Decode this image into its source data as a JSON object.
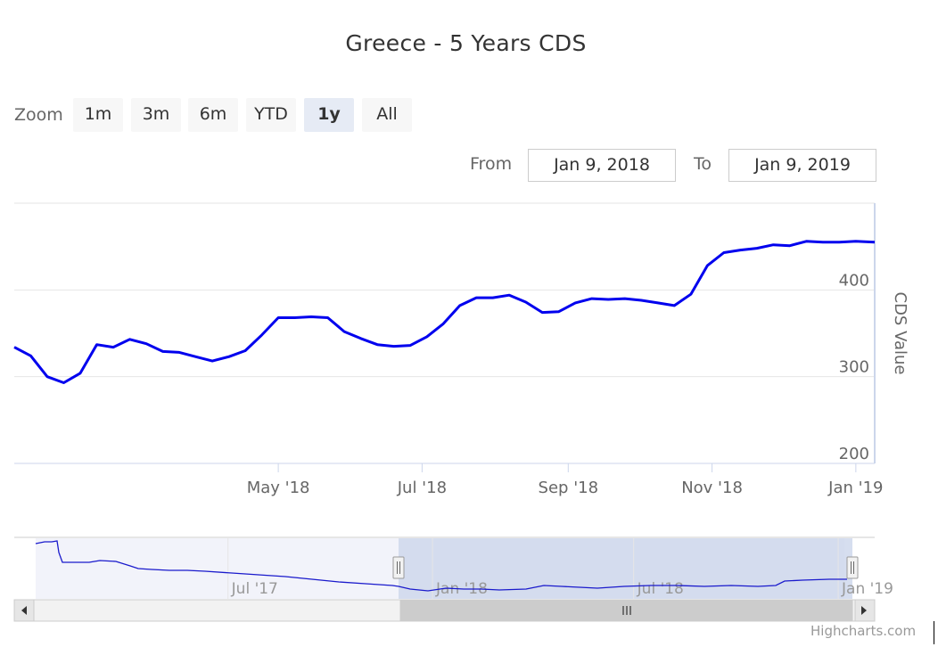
{
  "title": "Greece - 5 Years CDS",
  "range_selector": {
    "zoom_label": "Zoom",
    "buttons": [
      {
        "label": "1m",
        "active": false
      },
      {
        "label": "3m",
        "active": false
      },
      {
        "label": "6m",
        "active": false
      },
      {
        "label": "YTD",
        "active": false
      },
      {
        "label": "1y",
        "active": true
      },
      {
        "label": "All",
        "active": false
      }
    ],
    "from_label": "From",
    "from_value": "Jan 9, 2018",
    "to_label": "To",
    "to_value": "Jan 9, 2019"
  },
  "colors": {
    "series": "#0000ee",
    "navigator_mask": "#ccd6eb",
    "gridline": "#e6e6e6"
  },
  "chart_data": {
    "type": "line",
    "title": "Greece - 5 Years CDS",
    "ylabel": "CDS Value",
    "ylim": [
      200,
      500
    ],
    "y_ticks": [
      200,
      300,
      400
    ],
    "xlim": [
      "2018-01-09",
      "2019-01-09"
    ],
    "x_ticks": [
      {
        "date": "2018-05-01",
        "label": "May '18"
      },
      {
        "date": "2018-07-01",
        "label": "Jul '18"
      },
      {
        "date": "2018-09-01",
        "label": "Sep '18"
      },
      {
        "date": "2018-11-01",
        "label": "Nov '18"
      },
      {
        "date": "2019-01-01",
        "label": "Jan '19"
      }
    ],
    "series": [
      {
        "x": [
          "2018-01-09",
          "2018-01-16",
          "2018-01-23",
          "2018-01-30",
          "2018-02-06",
          "2018-02-13",
          "2018-02-20",
          "2018-02-27",
          "2018-03-06",
          "2018-03-13",
          "2018-03-20",
          "2018-03-27",
          "2018-04-03",
          "2018-04-10",
          "2018-04-17",
          "2018-04-24",
          "2018-05-01",
          "2018-05-08",
          "2018-05-15",
          "2018-05-22",
          "2018-05-29",
          "2018-06-05",
          "2018-06-12",
          "2018-06-19",
          "2018-06-26",
          "2018-07-03",
          "2018-07-10",
          "2018-07-17",
          "2018-07-24",
          "2018-07-31",
          "2018-08-07",
          "2018-08-14",
          "2018-08-21",
          "2018-08-28",
          "2018-09-04",
          "2018-09-11",
          "2018-09-18",
          "2018-09-25",
          "2018-10-02",
          "2018-10-09",
          "2018-10-16",
          "2018-10-23",
          "2018-10-30",
          "2018-11-06",
          "2018-11-13",
          "2018-11-20",
          "2018-11-27",
          "2018-12-04",
          "2018-12-11",
          "2018-12-18",
          "2018-12-25",
          "2019-01-01",
          "2019-01-09"
        ],
        "y": [
          334,
          324,
          300,
          293,
          304,
          337,
          334,
          343,
          338,
          329,
          328,
          323,
          318,
          323,
          330,
          348,
          368,
          368,
          369,
          368,
          352,
          344,
          337,
          335,
          336,
          346,
          361,
          382,
          391,
          391,
          394,
          386,
          374,
          375,
          385,
          390,
          389,
          390,
          388,
          385,
          382,
          395,
          428,
          443,
          446,
          448,
          452,
          451,
          456,
          455,
          455,
          456,
          455
        ]
      }
    ],
    "navigator": {
      "x_ticks": [
        {
          "date": "2017-07-01",
          "label": "Jul '17"
        },
        {
          "date": "2018-01-01",
          "label": "Jan '18"
        },
        {
          "date": "2018-07-01",
          "label": "Jul '18"
        },
        {
          "date": "2019-01-01",
          "label": "Jan '19"
        }
      ]
    }
  },
  "credits": "Highcharts.com"
}
